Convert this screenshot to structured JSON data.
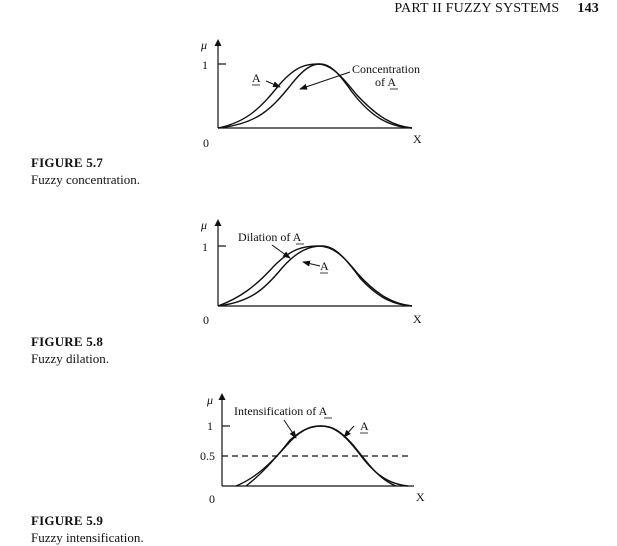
{
  "header": {
    "section": "PART II FUZZY SYSTEMS",
    "page": "143"
  },
  "figures": [
    {
      "label": "FIGURE 5.7",
      "caption": "Fuzzy concentration.",
      "axis": {
        "y_symbol": "μ",
        "y_one": "1",
        "origin": "0",
        "x_label": "X"
      },
      "annotations": {
        "a_label": "A",
        "curve_label_line1": "Concentration",
        "curve_label_line2": "of A"
      }
    },
    {
      "label": "FIGURE 5.8",
      "caption": "Fuzzy dilation.",
      "axis": {
        "y_symbol": "μ",
        "y_one": "1",
        "origin": "0",
        "x_label": "X"
      },
      "annotations": {
        "curve_label": "Dilation of A",
        "a_label": "A"
      }
    },
    {
      "label": "FIGURE 5.9",
      "caption": "Fuzzy intensification.",
      "axis": {
        "y_symbol": "μ",
        "y_one": "1",
        "y_half": "0.5",
        "origin": "0",
        "x_label": "X"
      },
      "annotations": {
        "curve_label": "Intensification of A",
        "a_label": "A"
      }
    }
  ]
}
